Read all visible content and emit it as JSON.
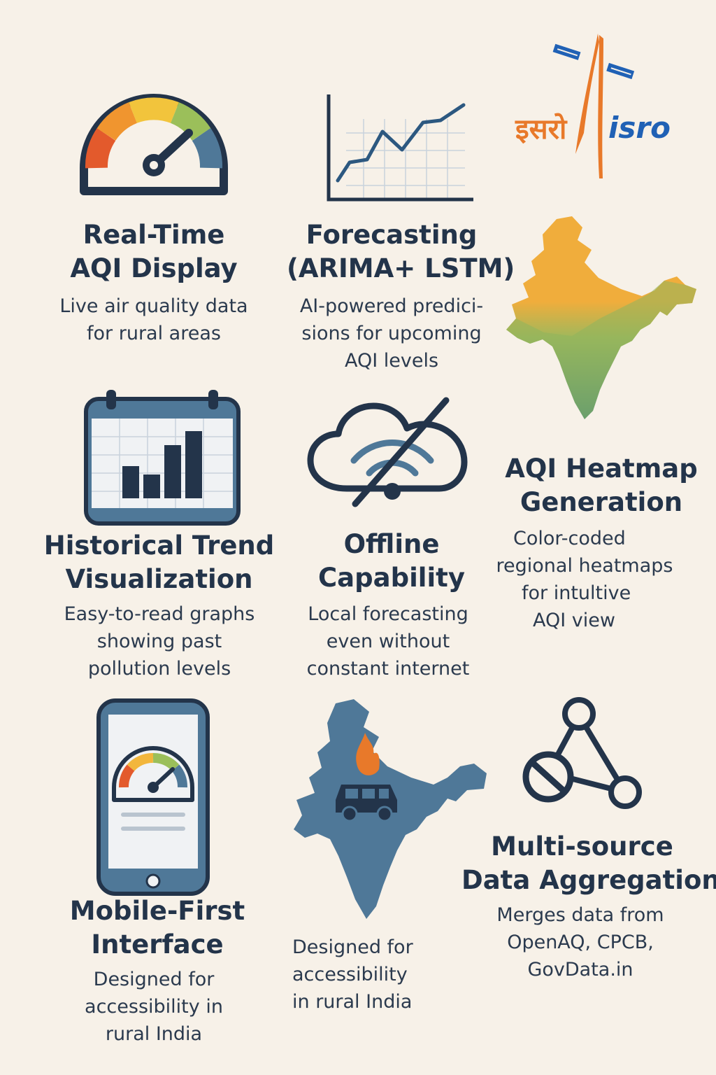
{
  "logo": {
    "hindi": "इसरो",
    "english": "isro"
  },
  "features": {
    "realtime": {
      "title": [
        "Real-Time",
        "AQI Display"
      ],
      "desc": [
        "Live air quality data",
        "for rural areas"
      ]
    },
    "forecast": {
      "title": [
        "Forecasting",
        "(ARIMA+ LSTM)"
      ],
      "desc": [
        "AI-powered predici-",
        "sions for upcoming",
        "AQI levels"
      ]
    },
    "heatmap": {
      "title": [
        "AQI Heatmap",
        "Generation"
      ],
      "desc": [
        "Color-coded",
        "regional heatmaps",
        "for intultive",
        "AQI view"
      ]
    },
    "historical": {
      "title": [
        "Historical Trend",
        "Visualization"
      ],
      "desc": [
        "Easy-to-read graphs",
        "showing past",
        "pollution levels"
      ]
    },
    "offline": {
      "title": [
        "Offline",
        "Capability"
      ],
      "desc": [
        "Local forecasting",
        "even without",
        "constant internet"
      ]
    },
    "mobile": {
      "title": [
        "Mobile-First",
        "Interface"
      ],
      "desc": [
        "Designed for",
        "accessibility in",
        "rural India"
      ]
    },
    "rural": {
      "desc": [
        "Designed for",
        "accessibility",
        "in rural India"
      ]
    },
    "multisource": {
      "title": [
        "Multi-source",
        "Data Aggregation"
      ],
      "desc": [
        "Merges data from",
        "OpenAQ, CPCB,",
        "GovData.in"
      ]
    }
  },
  "colors": {
    "navy": "#23344a",
    "orange": "#e8792a",
    "blue": "#2061b5",
    "green": "#8bb35a",
    "teal": "#4f8f8a",
    "steel": "#4f7898",
    "background": "#f7f1e8"
  },
  "icons": [
    "speedometer-icon",
    "line-chart-icon",
    "isro-logo",
    "india-heatmap-icon",
    "calendar-bar-chart-icon",
    "cloud-offline-icon",
    "smartphone-gauge-icon",
    "india-pollution-map-icon",
    "network-nodes-icon"
  ]
}
